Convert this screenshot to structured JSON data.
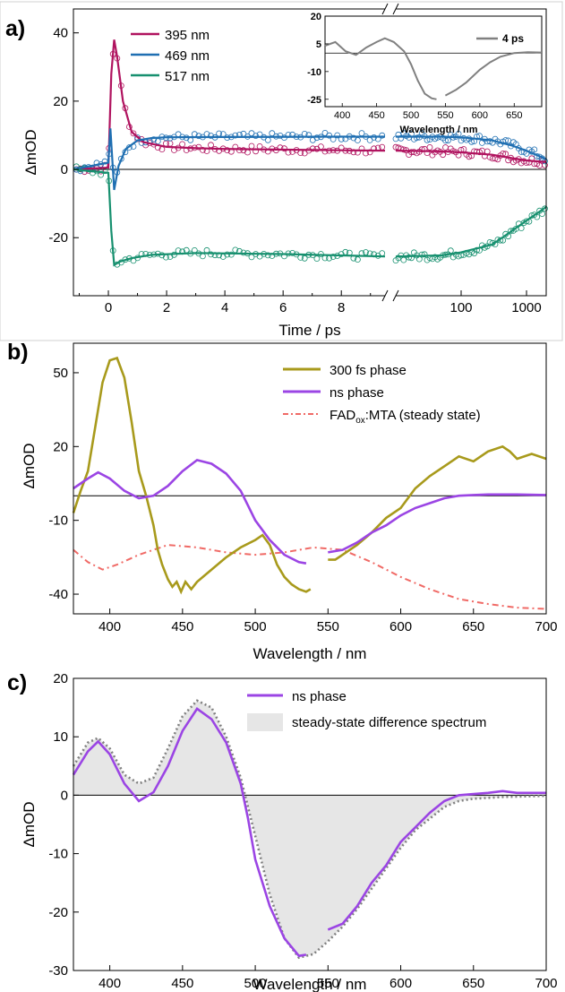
{
  "chart_data": [
    {
      "panel": "a)",
      "type": "line",
      "ylabel": "ΔmOD",
      "xlabel": "Time / ps",
      "ylim": [
        -37,
        47
      ],
      "yticks": [
        -20,
        0,
        20,
        40
      ],
      "xbreak": true,
      "x_segment_linear": {
        "range": [
          -1.2,
          9.5
        ],
        "ticks": [
          0,
          2,
          4,
          6,
          8
        ]
      },
      "x_segment_log": {
        "range": [
          10,
          2000
        ],
        "ticks": [
          100,
          1000
        ]
      },
      "legend": "top-left",
      "zero_line": true,
      "series": [
        {
          "name": "395 nm",
          "color": "#b0135f",
          "fit_linear": [
            [
              -1.2,
              0
            ],
            [
              0,
              0.5
            ],
            [
              0.1,
              28
            ],
            [
              0.2,
              38
            ],
            [
              0.3,
              33
            ],
            [
              0.5,
              20
            ],
            [
              0.8,
              11
            ],
            [
              1.2,
              8
            ],
            [
              2,
              6.6
            ],
            [
              3,
              6.2
            ],
            [
              4,
              6
            ],
            [
              6,
              5.8
            ],
            [
              8,
              5.6
            ],
            [
              9.5,
              5.5
            ]
          ],
          "fit_log": [
            [
              10,
              5.5
            ],
            [
              50,
              5.3
            ],
            [
              100,
              5.0
            ],
            [
              300,
              4.3
            ],
            [
              600,
              3.3
            ],
            [
              1000,
              2.6
            ],
            [
              2000,
              2.2
            ]
          ]
        },
        {
          "name": "469 nm",
          "color": "#1f6fb2",
          "fit_linear": [
            [
              -1.2,
              0
            ],
            [
              0,
              2
            ],
            [
              0.07,
              12
            ],
            [
              0.2,
              -6
            ],
            [
              0.35,
              1
            ],
            [
              0.6,
              6
            ],
            [
              1,
              8.5
            ],
            [
              1.5,
              9.2
            ],
            [
              2,
              9.4
            ],
            [
              4,
              9.5
            ],
            [
              8,
              9.6
            ],
            [
              9.5,
              9.6
            ]
          ],
          "fit_log": [
            [
              10,
              9.6
            ],
            [
              50,
              9.6
            ],
            [
              100,
              9.4
            ],
            [
              300,
              8.5
            ],
            [
              600,
              7
            ],
            [
              1000,
              5.5
            ],
            [
              2000,
              3
            ]
          ]
        },
        {
          "name": "517 nm",
          "color": "#17906f",
          "fit_linear": [
            [
              -1.2,
              0
            ],
            [
              0,
              -1
            ],
            [
              0.1,
              -18
            ],
            [
              0.2,
              -28
            ],
            [
              0.4,
              -27
            ],
            [
              0.8,
              -26
            ],
            [
              1.5,
              -25
            ],
            [
              3,
              -24.5
            ],
            [
              6,
              -24.8
            ],
            [
              9.5,
              -25.5
            ]
          ],
          "fit_log": [
            [
              10,
              -25.5
            ],
            [
              50,
              -25.2
            ],
            [
              100,
              -24.3
            ],
            [
              300,
              -22
            ],
            [
              600,
              -18
            ],
            [
              1000,
              -15
            ],
            [
              2000,
              -11
            ]
          ]
        }
      ],
      "inset": {
        "legend": "4 ps",
        "color": "#808080",
        "xlabel": "Wavelength / nm",
        "xlim": [
          375,
          690
        ],
        "ylim": [
          -29,
          20
        ],
        "xticks": [
          400,
          450,
          500,
          550,
          600,
          650
        ],
        "yticks": [
          20,
          5,
          -10,
          -25
        ],
        "seg1": [
          [
            375,
            4
          ],
          [
            390,
            6
          ],
          [
            405,
            1
          ],
          [
            420,
            -1
          ],
          [
            435,
            3
          ],
          [
            450,
            6
          ],
          [
            462,
            8
          ],
          [
            475,
            6
          ],
          [
            490,
            1
          ],
          [
            500,
            -6
          ],
          [
            510,
            -15
          ],
          [
            520,
            -22
          ],
          [
            530,
            -24.5
          ],
          [
            537,
            -25
          ]
        ],
        "seg2": [
          [
            550,
            -23
          ],
          [
            565,
            -20
          ],
          [
            580,
            -16
          ],
          [
            600,
            -9
          ],
          [
            615,
            -5
          ],
          [
            630,
            -2
          ],
          [
            650,
            0
          ],
          [
            670,
            0.5
          ],
          [
            690,
            0.3
          ]
        ]
      }
    },
    {
      "panel": "b)",
      "type": "line",
      "ylabel": "ΔmOD",
      "xlabel": "Wavelength / nm",
      "xlim": [
        375,
        700
      ],
      "ylim": [
        -48,
        62
      ],
      "yticks": [
        50,
        20,
        -10,
        -40
      ],
      "xticks": [
        400,
        450,
        500,
        550,
        600,
        650,
        700
      ],
      "legend": "top-right",
      "zero_line": true,
      "series": [
        {
          "name": "300 fs phase",
          "color": "#a89a1c",
          "seg1": [
            [
              375,
              -7
            ],
            [
              380,
              2
            ],
            [
              385,
              10
            ],
            [
              390,
              28
            ],
            [
              395,
              46
            ],
            [
              400,
              55
            ],
            [
              405,
              56
            ],
            [
              410,
              48
            ],
            [
              415,
              30
            ],
            [
              420,
              10
            ],
            [
              425,
              0
            ],
            [
              430,
              -12
            ],
            [
              433,
              -22
            ],
            [
              436,
              -28
            ],
            [
              440,
              -34
            ],
            [
              443,
              -37
            ],
            [
              446,
              -35
            ],
            [
              449,
              -39
            ],
            [
              452,
              -35
            ],
            [
              456,
              -38
            ],
            [
              460,
              -35
            ],
            [
              470,
              -30
            ],
            [
              480,
              -25
            ],
            [
              490,
              -21
            ],
            [
              500,
              -18
            ],
            [
              505,
              -16
            ],
            [
              510,
              -20
            ],
            [
              515,
              -28
            ],
            [
              520,
              -33
            ],
            [
              525,
              -36
            ],
            [
              530,
              -38
            ],
            [
              535,
              -39
            ],
            [
              538,
              -38
            ]
          ],
          "seg2": [
            [
              550,
              -26
            ],
            [
              555,
              -26
            ],
            [
              560,
              -24
            ],
            [
              570,
              -20
            ],
            [
              580,
              -15
            ],
            [
              590,
              -9
            ],
            [
              600,
              -5
            ],
            [
              610,
              3
            ],
            [
              620,
              8
            ],
            [
              630,
              12
            ],
            [
              640,
              16
            ],
            [
              650,
              14
            ],
            [
              660,
              18
            ],
            [
              670,
              20
            ],
            [
              675,
              18
            ],
            [
              680,
              15
            ],
            [
              690,
              17
            ],
            [
              700,
              15
            ]
          ]
        },
        {
          "name": "ns phase",
          "color": "#9b45e4",
          "seg1": [
            [
              375,
              3
            ],
            [
              385,
              7
            ],
            [
              392,
              9.5
            ],
            [
              400,
              7
            ],
            [
              410,
              2
            ],
            [
              420,
              -1
            ],
            [
              430,
              0
            ],
            [
              440,
              4
            ],
            [
              450,
              10
            ],
            [
              460,
              14.5
            ],
            [
              470,
              13
            ],
            [
              480,
              9
            ],
            [
              490,
              2
            ],
            [
              495,
              -4
            ],
            [
              500,
              -10
            ],
            [
              510,
              -18
            ],
            [
              520,
              -24
            ],
            [
              530,
              -27
            ],
            [
              535,
              -27.5
            ]
          ],
          "seg2": [
            [
              550,
              -23
            ],
            [
              560,
              -22
            ],
            [
              570,
              -19
            ],
            [
              580,
              -15
            ],
            [
              590,
              -12
            ],
            [
              600,
              -8
            ],
            [
              610,
              -5
            ],
            [
              620,
              -3
            ],
            [
              630,
              -1
            ],
            [
              640,
              0
            ],
            [
              650,
              0.3
            ],
            [
              660,
              0.5
            ],
            [
              680,
              0.5
            ],
            [
              700,
              0.3
            ]
          ]
        },
        {
          "name": "FADox:MTA (steady state)",
          "label_main": "FAD",
          "label_sub": "ox",
          "label_tail": ":MTA (steady state)",
          "color": "#f06a66",
          "dash": true,
          "points": [
            [
              375,
              -22
            ],
            [
              385,
              -27
            ],
            [
              395,
              -30
            ],
            [
              405,
              -28
            ],
            [
              420,
              -24
            ],
            [
              440,
              -20
            ],
            [
              460,
              -21
            ],
            [
              480,
              -23
            ],
            [
              500,
              -24
            ],
            [
              520,
              -23
            ],
            [
              540,
              -21
            ],
            [
              560,
              -22
            ],
            [
              580,
              -27
            ],
            [
              600,
              -33
            ],
            [
              620,
              -38
            ],
            [
              640,
              -42
            ],
            [
              660,
              -44
            ],
            [
              680,
              -45.5
            ],
            [
              700,
              -46
            ]
          ]
        }
      ]
    },
    {
      "panel": "c)",
      "type": "area",
      "ylabel": "ΔmOD",
      "xlabel": "Wavelength / nm",
      "xlim": [
        375,
        700
      ],
      "ylim": [
        -30,
        20
      ],
      "yticks": [
        20,
        10,
        0,
        -10,
        -20,
        -30
      ],
      "xticks": [
        400,
        450,
        500,
        550,
        600,
        650,
        700
      ],
      "legend": "top-right",
      "zero_line": true,
      "series": [
        {
          "name": "ns phase",
          "color": "#9b45e4",
          "seg1": [
            [
              375,
              3.5
            ],
            [
              385,
              7.5
            ],
            [
              392,
              9.2
            ],
            [
              400,
              7
            ],
            [
              410,
              2
            ],
            [
              420,
              -1
            ],
            [
              430,
              0.5
            ],
            [
              440,
              5
            ],
            [
              450,
              11
            ],
            [
              460,
              14.8
            ],
            [
              470,
              13
            ],
            [
              480,
              9
            ],
            [
              490,
              2
            ],
            [
              495,
              -4
            ],
            [
              500,
              -11
            ],
            [
              510,
              -19
            ],
            [
              520,
              -24.5
            ],
            [
              530,
              -27.5
            ],
            [
              535,
              -27.3
            ]
          ],
          "seg2": [
            [
              550,
              -23
            ],
            [
              560,
              -22
            ],
            [
              570,
              -19
            ],
            [
              580,
              -15
            ],
            [
              590,
              -12
            ],
            [
              600,
              -8
            ],
            [
              610,
              -5.5
            ],
            [
              620,
              -3
            ],
            [
              630,
              -1
            ],
            [
              640,
              0
            ],
            [
              650,
              0.2
            ],
            [
              660,
              0.4
            ],
            [
              670,
              0.7
            ],
            [
              680,
              0.4
            ],
            [
              700,
              0.4
            ]
          ]
        },
        {
          "name": "steady-state difference spectrum",
          "color": "#808080",
          "fill": "#e6e6e6",
          "dotted": true,
          "points": [
            [
              375,
              5
            ],
            [
              385,
              9
            ],
            [
              392,
              9.8
            ],
            [
              400,
              8
            ],
            [
              410,
              3.5
            ],
            [
              420,
              2
            ],
            [
              430,
              3
            ],
            [
              440,
              8
            ],
            [
              450,
              13.5
            ],
            [
              460,
              16.2
            ],
            [
              470,
              15
            ],
            [
              480,
              10
            ],
            [
              490,
              3
            ],
            [
              500,
              -7
            ],
            [
              510,
              -17
            ],
            [
              520,
              -24.5
            ],
            [
              530,
              -27.8
            ],
            [
              540,
              -27.2
            ],
            [
              550,
              -25
            ],
            [
              560,
              -22.5
            ],
            [
              570,
              -19.5
            ],
            [
              580,
              -16
            ],
            [
              590,
              -12.5
            ],
            [
              600,
              -9
            ],
            [
              610,
              -6
            ],
            [
              620,
              -4
            ],
            [
              630,
              -2
            ],
            [
              640,
              -1
            ],
            [
              650,
              -0.6
            ],
            [
              670,
              -0.3
            ],
            [
              700,
              -0.1
            ]
          ]
        }
      ]
    }
  ]
}
